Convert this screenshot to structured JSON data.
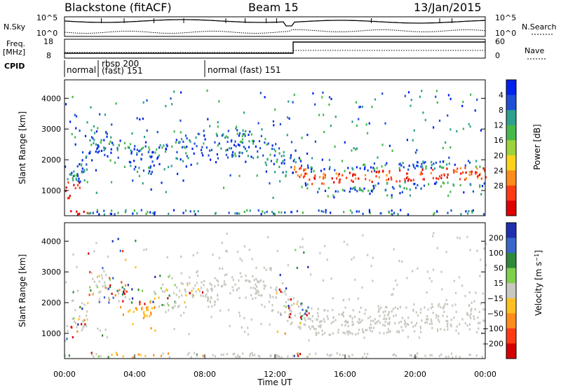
{
  "header": {
    "station": "Blackstone (fitACF)",
    "beam": "Beam 15",
    "date": "13/Jan/2015"
  },
  "panels": {
    "nsky_label": "N.Sky",
    "nsky_ticks": [
      "10^5",
      "10^0"
    ],
    "nsearch_label": "N.Search",
    "nsearch_ticks": [
      "10^5",
      "10^0"
    ],
    "freq_label": "Freq.",
    "freq_unit": "[MHz]",
    "freq_ticks": [
      "18",
      "8"
    ],
    "nave_label": "Nave",
    "nave_ticks": [
      "60",
      "0"
    ],
    "cpid_label": "CPID",
    "cpid_entries": [
      {
        "text": "normal",
        "line2": ""
      },
      {
        "text": "rbsp 200",
        "line2": "(fast) 151"
      },
      {
        "text": "normal (fast) 151",
        "line2": ""
      }
    ]
  },
  "chart_data": [
    {
      "type": "heatmap",
      "title": "",
      "ylabel": "Slant Range [km]",
      "xlabel": "Time UT",
      "x_ticks": [
        "00:00",
        "04:00",
        "08:00",
        "12:00",
        "16:00",
        "20:00",
        "00:00"
      ],
      "y_ticks": [
        1000,
        2000,
        3000,
        4000
      ],
      "ylim": [
        180,
        4600
      ],
      "xlim_hours": [
        0,
        24
      ],
      "colorbar": {
        "label": "Power [dB]",
        "ticks": [
          "4",
          "8",
          "12",
          "16",
          "20",
          "24",
          "28"
        ],
        "colors": [
          "#0022ee",
          "#1f4fd6",
          "#2f9f8f",
          "#46b94a",
          "#9cd33a",
          "#ffd21a",
          "#ff8c1a",
          "#ff3b14",
          "#e00000"
        ]
      }
    },
    {
      "type": "heatmap",
      "title": "",
      "ylabel": "Slant Range [km]",
      "xlabel": "Time UT",
      "x_ticks": [
        "00:00",
        "04:00",
        "08:00",
        "12:00",
        "16:00",
        "20:00",
        "00:00"
      ],
      "y_ticks": [
        1000,
        2000,
        3000,
        4000
      ],
      "ylim": [
        180,
        4600
      ],
      "xlim_hours": [
        0,
        24
      ],
      "colorbar": {
        "label": "Velocity [m s^-1]",
        "ticks": [
          "200",
          "100",
          "50",
          "15",
          "-15",
          "-50",
          "-100",
          "-200"
        ],
        "colors": [
          "#1f2fb0",
          "#3a66cc",
          "#2e8a3a",
          "#7fd04a",
          "#c8c8c0",
          "#ffc020",
          "#ff8c1a",
          "#ff3b14",
          "#d40000"
        ]
      }
    }
  ]
}
